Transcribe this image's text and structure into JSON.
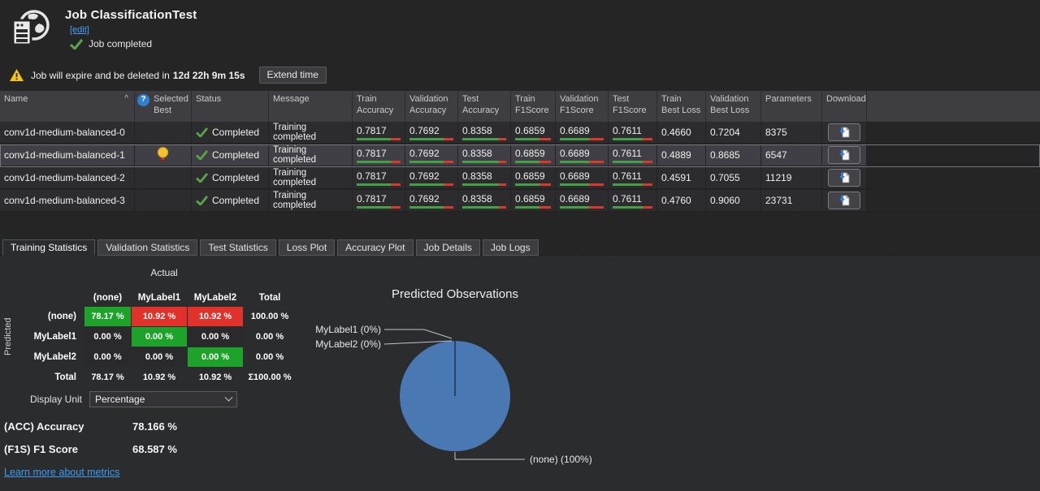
{
  "header": {
    "title": "Job ClassificationTest",
    "edit_link": "[edit]",
    "status": "Job completed"
  },
  "expiry": {
    "text": "Job will expire and be deleted in",
    "time": "12d 22h 9m 15s",
    "extend_button": "Extend time"
  },
  "results_table": {
    "columns": {
      "name": "Name",
      "selected_best": "Selected Best",
      "status": "Status",
      "message": "Message",
      "train_acc": "Train Accuracy",
      "val_acc": "Validation Accuracy",
      "test_acc": "Test Accuracy",
      "train_f1": "Train F1Score",
      "val_f1": "Validation F1Score",
      "test_f1": "Test F1Score",
      "train_loss": "Train Best Loss",
      "val_loss": "Validation Best Loss",
      "params": "Parameters",
      "download": "Download"
    },
    "sort_glyph": "^",
    "help_glyph": "?",
    "rows": [
      {
        "name": "conv1d-medium-balanced-0",
        "selected_best": false,
        "status": "Completed",
        "message": "Training completed",
        "train_acc": "0.7817",
        "val_acc": "0.7692",
        "test_acc": "0.8358",
        "train_f1": "0.6859",
        "val_f1": "0.6689",
        "test_f1": "0.7611",
        "train_loss": "0.4660",
        "val_loss": "0.7204",
        "params": "8375"
      },
      {
        "name": "conv1d-medium-balanced-1",
        "selected_best": true,
        "status": "Completed",
        "message": "Training completed",
        "train_acc": "0.7817",
        "val_acc": "0.7692",
        "test_acc": "0.8358",
        "train_f1": "0.6859",
        "val_f1": "0.6689",
        "test_f1": "0.7611",
        "train_loss": "0.4889",
        "val_loss": "0.8685",
        "params": "6547"
      },
      {
        "name": "conv1d-medium-balanced-2",
        "selected_best": false,
        "status": "Completed",
        "message": "Training completed",
        "train_acc": "0.7817",
        "val_acc": "0.7692",
        "test_acc": "0.8358",
        "train_f1": "0.6859",
        "val_f1": "0.6689",
        "test_f1": "0.7611",
        "train_loss": "0.4591",
        "val_loss": "0.7055",
        "params": "11219"
      },
      {
        "name": "conv1d-medium-balanced-3",
        "selected_best": false,
        "status": "Completed",
        "message": "Training completed",
        "train_acc": "0.7817",
        "val_acc": "0.7692",
        "test_acc": "0.8358",
        "train_f1": "0.6859",
        "val_f1": "0.6689",
        "test_f1": "0.7611",
        "train_loss": "0.4760",
        "val_loss": "0.9060",
        "params": "23731"
      }
    ]
  },
  "tabs": {
    "active": "Training Statistics",
    "items": [
      "Training Statistics",
      "Validation Statistics",
      "Test Statistics",
      "Loss Plot",
      "Accuracy Plot",
      "Job Details",
      "Job Logs"
    ]
  },
  "confusion_matrix": {
    "actual_label": "Actual",
    "predicted_label": "Predicted",
    "col_headers": [
      "(none)",
      "MyLabel1",
      "MyLabel2",
      "Total"
    ],
    "row_headers": [
      "(none)",
      "MyLabel1",
      "MyLabel2",
      "Total"
    ],
    "cells": [
      [
        "78.17 %",
        "10.92 %",
        "10.92 %",
        "100.00 %"
      ],
      [
        "0.00 %",
        "0.00 %",
        "0.00 %",
        "0.00 %"
      ],
      [
        "0.00 %",
        "0.00 %",
        "0.00 %",
        "0.00 %"
      ],
      [
        "78.17 %",
        "10.92 %",
        "10.92 %",
        "Σ100.00 %"
      ]
    ]
  },
  "display_unit": {
    "label": "Display Unit",
    "value": "Percentage"
  },
  "metrics": [
    {
      "label": "(ACC) Accuracy",
      "value": "78.166 %"
    },
    {
      "label": "(F1S) F1 Score",
      "value": "68.587 %"
    }
  ],
  "metrics_link": "Learn more about metrics",
  "pie": {
    "color": "#4a78b2",
    "annotations": [
      "MyLabel1 (0%)",
      "MyLabel2 (0%)",
      "(none) (100%)"
    ]
  },
  "chart_data": {
    "type": "pie",
    "title": "Predicted Observations",
    "labels": [
      "(none)",
      "MyLabel1",
      "MyLabel2"
    ],
    "values": [
      100,
      0,
      0
    ],
    "unit": "%",
    "legend_position": "none",
    "annotations": [
      "MyLabel1 (0%)",
      "MyLabel2 (0%)",
      "(none) (100%)"
    ]
  },
  "colors": {
    "background": "#252526",
    "panel": "#2b2c2e",
    "table_header": "#3e3e42",
    "row": "#2c2c2e",
    "row_selected": "#3f3f45",
    "bar_green": "#43a047",
    "bar_red": "#d8392b",
    "matrix_green": "#1ea32a",
    "matrix_red": "#e0312a",
    "pie_blue": "#4a78b2",
    "link_blue": "#3f9bf0",
    "warning_yellow": "#f5c518"
  }
}
